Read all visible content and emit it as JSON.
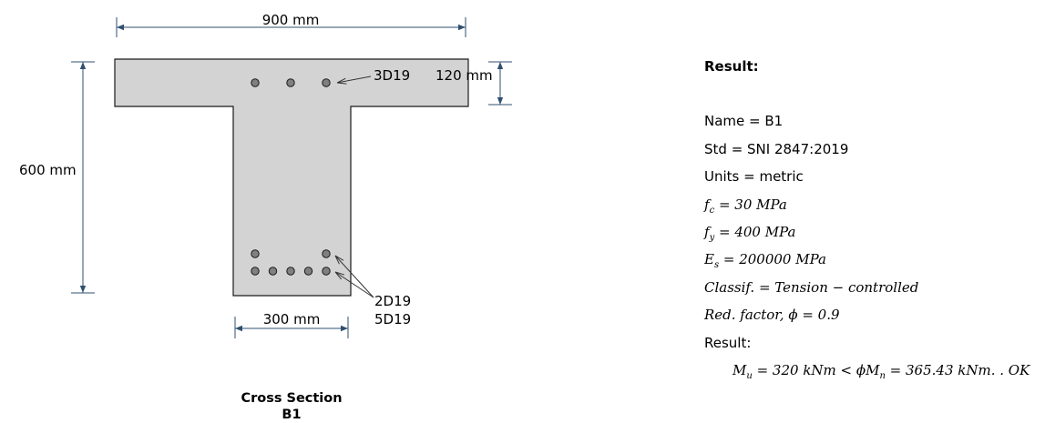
{
  "section": {
    "name": "B1",
    "caption_line1": "Cross Section",
    "caption_line2": "B1",
    "flange_width": "900 mm",
    "flange_thickness": "120 mm",
    "total_height": "600 mm",
    "web_width": "300 mm",
    "top_bars_label": "3D19",
    "bottom_layer2_label": "2D19",
    "bottom_layer1_label": "5D19",
    "concrete_color": "#d3d3d3",
    "bar_color": "#808080",
    "dimension_color": "#2f4f6f"
  },
  "result": {
    "heading": "Result:",
    "name_line": "Name = B1",
    "std_line": "Std = SNI 2847:2019",
    "units_line": "Units = metric",
    "fc_line": "f_c = 30 MPa",
    "fy_line": "f_y = 400 MPa",
    "es_line": "E_s = 200000 MPa",
    "classif_line": "Classif. = Tension − controlled",
    "red_factor_line": "Red. factor, ϕ = 0.9",
    "result_label": "Result:",
    "moment_line": "M_u = 320 kNm < ϕM_n = 365.43 kNm. . OK"
  }
}
